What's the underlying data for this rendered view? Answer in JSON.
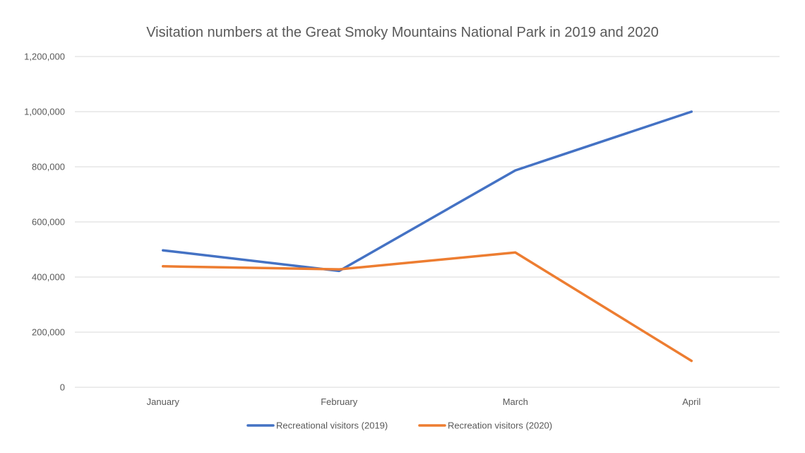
{
  "chart_data": {
    "type": "line",
    "title": "Visitation numbers at the Great Smoky Mountains National Park in 2019 and 2020",
    "xlabel": "",
    "ylabel": "",
    "categories": [
      "January",
      "February",
      "March",
      "April"
    ],
    "ylim": [
      0,
      1200000
    ],
    "y_ticks": [
      0,
      200000,
      400000,
      600000,
      800000,
      1000000,
      1200000
    ],
    "y_tick_labels": [
      "0",
      "200,000",
      "400,000",
      "600,000",
      "800,000",
      "1,000,000",
      "1,200,000"
    ],
    "grid": true,
    "legend_position": "bottom",
    "series": [
      {
        "name": "Recreational visitors (2019)",
        "color": "#4472c4",
        "values": [
          497000,
          422000,
          787000,
          1000000
        ]
      },
      {
        "name": "Recreation visitors (2020)",
        "color": "#ed7d31",
        "values": [
          439000,
          428000,
          489000,
          96000
        ]
      }
    ]
  }
}
